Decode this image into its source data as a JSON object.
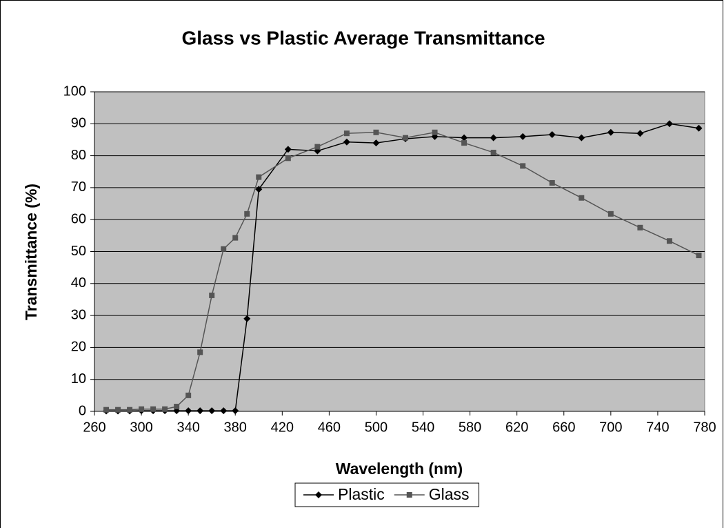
{
  "chart_data": {
    "type": "line",
    "title": "Glass vs Plastic Average Transmittance",
    "x_label": "Wavelength (nm)",
    "y_label": "Transmittance (%)",
    "x": [
      270,
      280,
      290,
      300,
      310,
      320,
      330,
      340,
      350,
      360,
      370,
      380,
      390,
      400,
      425,
      450,
      475,
      500,
      525,
      550,
      575,
      600,
      625,
      650,
      675,
      700,
      725,
      750,
      775
    ],
    "series": [
      {
        "name": "Plastic",
        "color": "#000000",
        "marker": "diamond",
        "values": [
          0.1,
          0.1,
          0.1,
          0.2,
          0.2,
          0.2,
          0.2,
          0.2,
          0.2,
          0.2,
          0.2,
          0.2,
          29,
          69.5,
          82,
          81.5,
          84.3,
          84,
          85.3,
          86,
          85.6,
          85.6,
          86,
          86.6,
          85.6,
          87.3,
          87,
          90,
          88.6
        ]
      },
      {
        "name": "Glass",
        "color": "#555555",
        "marker": "square",
        "values": [
          0.5,
          0.5,
          0.5,
          0.7,
          0.7,
          0.7,
          1.5,
          5,
          18.5,
          36.3,
          50.8,
          54.3,
          61.8,
          73.3,
          79.2,
          82.8,
          87,
          87.3,
          85.6,
          87.3,
          84,
          81,
          76.8,
          71.5,
          66.8,
          61.8,
          57.5,
          53.3,
          48.8
        ]
      }
    ],
    "xlim": [
      260,
      780
    ],
    "xticks": [
      260,
      300,
      340,
      380,
      420,
      460,
      500,
      540,
      580,
      620,
      660,
      700,
      740,
      780
    ],
    "ylim": [
      0,
      100
    ],
    "yticks": [
      0,
      10,
      20,
      30,
      40,
      50,
      60,
      70,
      80,
      90,
      100
    ],
    "grid": true,
    "plot_background": "#c0c0c0",
    "legend": "bottom"
  }
}
